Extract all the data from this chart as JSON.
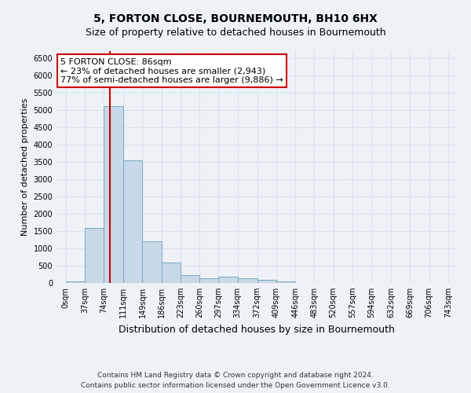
{
  "title": "5, FORTON CLOSE, BOURNEMOUTH, BH10 6HX",
  "subtitle": "Size of property relative to detached houses in Bournemouth",
  "xlabel": "Distribution of detached houses by size in Bournemouth",
  "ylabel": "Number of detached properties",
  "bar_edges": [
    0,
    37,
    74,
    111,
    149,
    186,
    223,
    260,
    297,
    334,
    372,
    409,
    446,
    483,
    520,
    557,
    594,
    632,
    669,
    706,
    743
  ],
  "bar_heights": [
    50,
    1600,
    5100,
    3550,
    1200,
    600,
    230,
    130,
    190,
    140,
    90,
    50,
    10,
    5,
    0,
    0,
    0,
    0,
    0,
    0
  ],
  "bar_color": "#c8d8e8",
  "bar_edge_color": "#7aaabb",
  "grid_color": "#d8e4ee",
  "background_color": "#eef2f7",
  "vline_x": 86,
  "vline_color": "#cc0000",
  "annotation_text": "5 FORTON CLOSE: 86sqm\n← 23% of detached houses are smaller (2,943)\n77% of semi-detached houses are larger (9,886) →",
  "annotation_box_color": "#ffffff",
  "annotation_border_color": "#cc0000",
  "ylim": [
    0,
    6700
  ],
  "yticks": [
    0,
    500,
    1000,
    1500,
    2000,
    2500,
    3000,
    3500,
    4000,
    4500,
    5000,
    5500,
    6000,
    6500
  ],
  "xtick_labels": [
    "0sqm",
    "37sqm",
    "74sqm",
    "111sqm",
    "149sqm",
    "186sqm",
    "223sqm",
    "260sqm",
    "297sqm",
    "334sqm",
    "372sqm",
    "409sqm",
    "446sqm",
    "483sqm",
    "520sqm",
    "557sqm",
    "594sqm",
    "632sqm",
    "669sqm",
    "706sqm",
    "743sqm"
  ],
  "footer_line1": "Contains HM Land Registry data © Crown copyright and database right 2024.",
  "footer_line2": "Contains public sector information licensed under the Open Government Licence v3.0.",
  "title_fontsize": 10,
  "subtitle_fontsize": 9,
  "xlabel_fontsize": 9,
  "ylabel_fontsize": 8,
  "tick_fontsize": 7,
  "annotation_fontsize": 8,
  "footer_fontsize": 6.5
}
